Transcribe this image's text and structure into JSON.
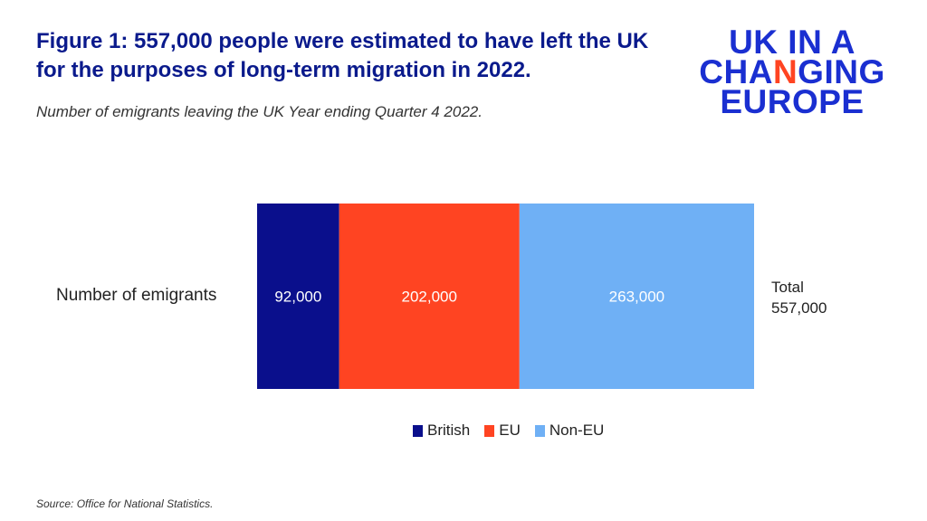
{
  "header": {
    "title": "Figure 1: 557,000 people were estimated to have left the UK for the purposes of long-term migration in 2022.",
    "subtitle": "Number of emigrants leaving the UK Year ending Quarter 4 2022."
  },
  "logo": {
    "line1": "UK IN A",
    "line2_a": "CHA",
    "line2_b": "N",
    "line2_c": "GI",
    "line2_d": "NG",
    "line3": "EUROPE"
  },
  "chart_data": {
    "type": "bar",
    "orientation": "horizontal-stacked",
    "categories": [
      "Number of emigrants"
    ],
    "series": [
      {
        "name": "British",
        "values": [
          92000
        ],
        "label": "92,000",
        "color": "#0a0f8c"
      },
      {
        "name": "EU",
        "values": [
          202000
        ],
        "label": "202,000",
        "color": "#ff4422"
      },
      {
        "name": "Non-EU",
        "values": [
          263000
        ],
        "label": "263,000",
        "color": "#6fb0f5"
      }
    ],
    "total_label_1": "Total",
    "total_label_2": "557,000",
    "legend_position": "bottom",
    "grid": false
  },
  "footer": {
    "source": "Source: Office for National Statistics."
  }
}
